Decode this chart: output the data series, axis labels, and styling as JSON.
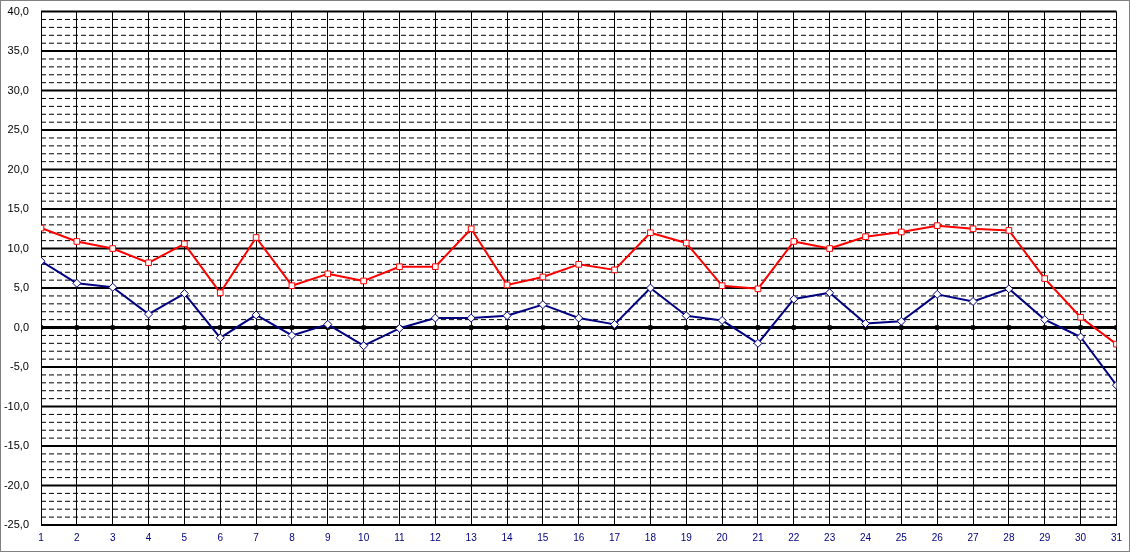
{
  "chart_data": {
    "type": "line",
    "x": [
      1,
      2,
      3,
      4,
      5,
      6,
      7,
      8,
      9,
      10,
      11,
      12,
      13,
      14,
      15,
      16,
      17,
      18,
      19,
      20,
      21,
      22,
      23,
      24,
      25,
      26,
      27,
      28,
      29,
      30,
      31
    ],
    "xlim": [
      1,
      31
    ],
    "xticks": [
      1,
      2,
      3,
      4,
      5,
      6,
      7,
      8,
      9,
      10,
      11,
      12,
      13,
      14,
      15,
      16,
      17,
      18,
      19,
      20,
      21,
      22,
      23,
      24,
      25,
      26,
      27,
      28,
      29,
      30,
      31
    ],
    "series": [
      {
        "color": "#ff0000",
        "marker": "square",
        "values": [
          12.6,
          10.9,
          10.0,
          8.2,
          10.6,
          4.4,
          11.4,
          5.3,
          6.8,
          5.9,
          7.7,
          7.7,
          12.5,
          5.4,
          6.4,
          8.0,
          7.3,
          12.0,
          10.7,
          5.3,
          4.9,
          10.9,
          10.0,
          11.5,
          12.1,
          12.9,
          12.5,
          12.3,
          6.2,
          1.3,
          -2.1
        ]
      },
      {
        "color": "#000080",
        "marker": "diamond",
        "values": [
          8.4,
          5.6,
          5.1,
          1.7,
          4.3,
          -1.3,
          1.6,
          -1.0,
          0.4,
          -2.3,
          -0.1,
          1.2,
          1.2,
          1.5,
          2.9,
          1.2,
          0.4,
          5.0,
          1.5,
          0.9,
          -2.0,
          3.6,
          4.4,
          0.5,
          0.8,
          4.2,
          3.3,
          4.9,
          1.0,
          -1.2,
          -7.3
        ]
      },
      {
        "color": "#000000",
        "marker": "square",
        "values": [
          0,
          0,
          0,
          0,
          0,
          0,
          0,
          0,
          0,
          0,
          0,
          0,
          0,
          0,
          0,
          0,
          0,
          0,
          0,
          0,
          0,
          0,
          0,
          0,
          0,
          0,
          0,
          0,
          0,
          0,
          0
        ]
      }
    ],
    "ylim": [
      -25,
      40
    ],
    "yticks": [
      {
        "value": -25,
        "label": "-25,0"
      },
      {
        "value": -24,
        "label": null
      },
      {
        "value": -23,
        "label": null
      },
      {
        "value": -22,
        "label": null
      },
      {
        "value": -21,
        "label": null
      },
      {
        "value": -20,
        "label": "-20,0"
      },
      {
        "value": -19,
        "label": null
      },
      {
        "value": -18,
        "label": null
      },
      {
        "value": -17,
        "label": null
      },
      {
        "value": -16,
        "label": null
      },
      {
        "value": -15,
        "label": "-15,0"
      },
      {
        "value": -14,
        "label": null
      },
      {
        "value": -13,
        "label": null
      },
      {
        "value": -12,
        "label": null
      },
      {
        "value": -11,
        "label": null
      },
      {
        "value": -10,
        "label": "-10,0"
      },
      {
        "value": -9,
        "label": null
      },
      {
        "value": -8,
        "label": null
      },
      {
        "value": -7,
        "label": null
      },
      {
        "value": -6,
        "label": null
      },
      {
        "value": -5,
        "label": "-5,0"
      },
      {
        "value": -4,
        "label": null
      },
      {
        "value": -3,
        "label": null
      },
      {
        "value": -2,
        "label": null
      },
      {
        "value": -1,
        "label": null
      },
      {
        "value": 0,
        "label": "0,0"
      },
      {
        "value": 1,
        "label": null
      },
      {
        "value": 2,
        "label": null
      },
      {
        "value": 3,
        "label": null
      },
      {
        "value": 4,
        "label": null
      },
      {
        "value": 5,
        "label": "5,0"
      },
      {
        "value": 6,
        "label": null
      },
      {
        "value": 7,
        "label": null
      },
      {
        "value": 8,
        "label": null
      },
      {
        "value": 9,
        "label": null
      },
      {
        "value": 10,
        "label": "10,0"
      },
      {
        "value": 11,
        "label": null
      },
      {
        "value": 12,
        "label": null
      },
      {
        "value": 13,
        "label": null
      },
      {
        "value": 14,
        "label": null
      },
      {
        "value": 15,
        "label": "15,0"
      },
      {
        "value": 16,
        "label": null
      },
      {
        "value": 17,
        "label": null
      },
      {
        "value": 18,
        "label": null
      },
      {
        "value": 19,
        "label": null
      },
      {
        "value": 20,
        "label": "20,0"
      },
      {
        "value": 21,
        "label": null
      },
      {
        "value": 22,
        "label": null
      },
      {
        "value": 23,
        "label": null
      },
      {
        "value": 24,
        "label": null
      },
      {
        "value": 25,
        "label": "25,0"
      },
      {
        "value": 26,
        "label": null
      },
      {
        "value": 27,
        "label": null
      },
      {
        "value": 28,
        "label": null
      },
      {
        "value": 29,
        "label": null
      },
      {
        "value": 30,
        "label": "30,0"
      },
      {
        "value": 31,
        "label": null
      },
      {
        "value": 32,
        "label": null
      },
      {
        "value": 33,
        "label": null
      },
      {
        "value": 34,
        "label": null
      },
      {
        "value": 35,
        "label": "35,0"
      },
      {
        "value": 36,
        "label": null
      },
      {
        "value": 37,
        "label": null
      },
      {
        "value": 38,
        "label": null
      },
      {
        "value": 39,
        "label": null
      },
      {
        "value": 40,
        "label": "40,0"
      }
    ],
    "grid": true,
    "legend": false,
    "line_style": "solid"
  }
}
